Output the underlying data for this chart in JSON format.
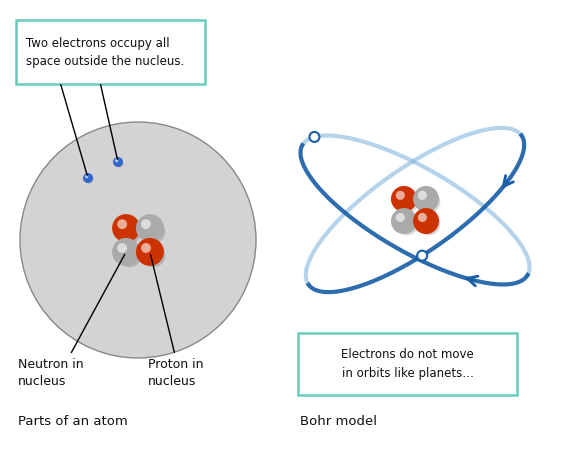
{
  "bg_color": "#ffffff",
  "atom_circle_color": "#d3d3d3",
  "atom_circle_edge": "#888888",
  "proton_color": "#cc3300",
  "neutron_color": "#aaaaaa",
  "electron_color": "#3366cc",
  "bohr_orbit_color_dark": "#1a5fa8",
  "bohr_orbit_color_light": "#7ab0dd",
  "label_box_color": "#66ccbb",
  "text_color": "#111111",
  "left_label": "Parts of an atom",
  "right_label": "Bohr model",
  "callout_text": "Two electrons occupy all\nspace outside the nucleus.",
  "neutron_label": "Neutron in\nnucleus",
  "proton_label": "Proton in\nnucleus",
  "bohr_box_text": "Electrons do not move\nin orbits like planets…",
  "figw": 5.62,
  "figh": 4.7,
  "dpi": 100
}
